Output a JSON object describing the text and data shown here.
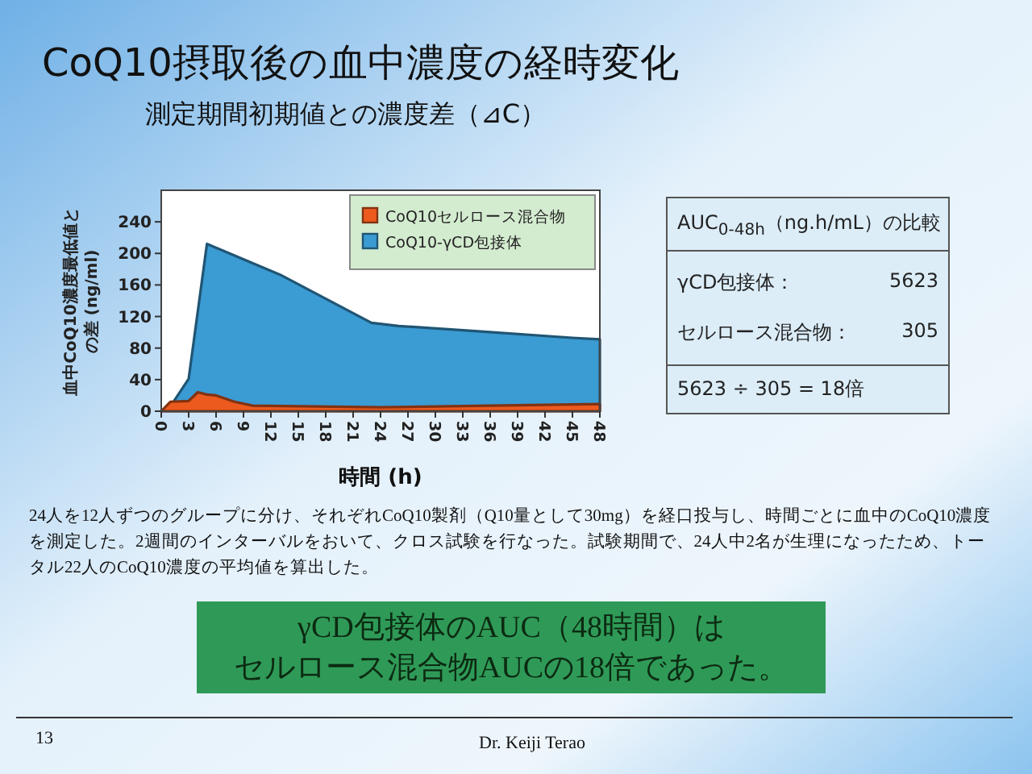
{
  "chart_data": {
    "type": "area",
    "title": "CoQ10摂取後の血中濃度の経時変化",
    "subtitle": "測定期間初期値との濃度差（⊿C）",
    "xlabel": "時間 (h)",
    "ylabel": "血中CoQ10濃度最低値との差 (ng/ml)",
    "xlim": [
      0,
      48
    ],
    "xticks": [
      0,
      3,
      6,
      9,
      12,
      15,
      18,
      21,
      24,
      27,
      30,
      33,
      36,
      39,
      42,
      45,
      48
    ],
    "ylim": [
      0,
      280
    ],
    "yticks": [
      0,
      40,
      80,
      120,
      160,
      200,
      240
    ],
    "grid": false,
    "legend": "top right",
    "series": [
      {
        "name": "CoQ10セルロース混合物",
        "color": "#ec5a1e",
        "x": [
          0,
          1,
          3,
          4,
          5,
          6,
          8,
          10,
          24,
          36,
          48
        ],
        "values": [
          0,
          12,
          13,
          24,
          21,
          20,
          12,
          7,
          5,
          7,
          9
        ]
      },
      {
        "name": "CoQ10-γCD包接体",
        "color": "#3b9bd3",
        "x": [
          0,
          1,
          3,
          5,
          13,
          23,
          26,
          35,
          45,
          48
        ],
        "values": [
          0,
          6,
          41,
          212,
          173,
          112,
          108,
          101,
          93,
          91
        ]
      }
    ],
    "annotations": [
      "AUC$_{0-48h}$（ng.h/mL）の比較",
      "γCD包接体：",
      "5623",
      "セルロース混合物：",
      "305",
      "5623 ÷ 305 = 18倍",
      "24人を12人ずつのグループに分け、それぞれCoQ10製剤（Q10量として30mg）を経口投与し、時間ごとに血中のCoQ10濃度を測定した。2週間のインターバルをおいて、クロス試験を行なった。試験期間で、24人中2名が生理になったため、トータル22人のCoQ10濃度の平均値を算出した。",
      "γCD包接体のAUC（48時間）は",
      "セルロース混合物AUCの18倍であった。",
      "13",
      "Dr. Keiji Terao"
    ]
  }
}
